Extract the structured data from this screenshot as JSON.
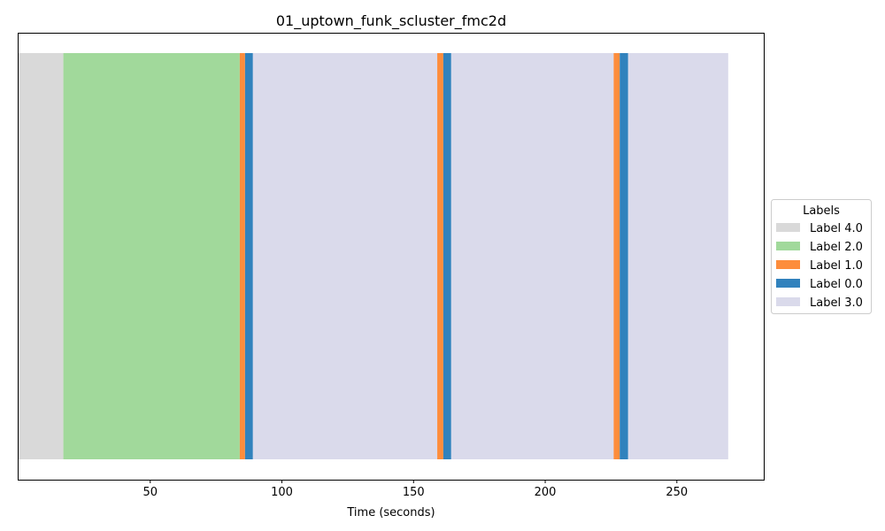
{
  "chart_data": {
    "type": "bar",
    "orientation": "horizontal-timeline",
    "title": "01_uptown_funk_scluster_fmc2d",
    "xlabel": "Time (seconds)",
    "ylabel": "",
    "xlim": [
      0,
      283
    ],
    "xticks": [
      50,
      100,
      150,
      200,
      250
    ],
    "grid": false,
    "legend": {
      "title": "Labels",
      "placement": "center-right-outside",
      "entries": [
        {
          "label": "Label 4.0",
          "color": "#d9d9d9"
        },
        {
          "label": "Label 2.0",
          "color": "#a1d99b"
        },
        {
          "label": "Label 1.0",
          "color": "#fd8d3c"
        },
        {
          "label": "Label 0.0",
          "color": "#3182bd"
        },
        {
          "label": "Label 3.0",
          "color": "#dadaeb"
        }
      ]
    },
    "segments": [
      {
        "start": 0.0,
        "end": 17.0,
        "label": "Label 4.0"
      },
      {
        "start": 17.0,
        "end": 84.0,
        "label": "Label 2.0"
      },
      {
        "start": 84.0,
        "end": 86.0,
        "label": "Label 1.0"
      },
      {
        "start": 86.0,
        "end": 89.0,
        "label": "Label 0.0"
      },
      {
        "start": 89.0,
        "end": 159.0,
        "label": "Label 3.0"
      },
      {
        "start": 159.0,
        "end": 161.3,
        "label": "Label 1.0"
      },
      {
        "start": 161.3,
        "end": 164.3,
        "label": "Label 0.0"
      },
      {
        "start": 164.3,
        "end": 226.0,
        "label": "Label 3.0"
      },
      {
        "start": 226.0,
        "end": 228.3,
        "label": "Label 1.0"
      },
      {
        "start": 228.3,
        "end": 231.5,
        "label": "Label 0.0"
      },
      {
        "start": 231.5,
        "end": 269.5,
        "label": "Label 3.0"
      }
    ]
  }
}
